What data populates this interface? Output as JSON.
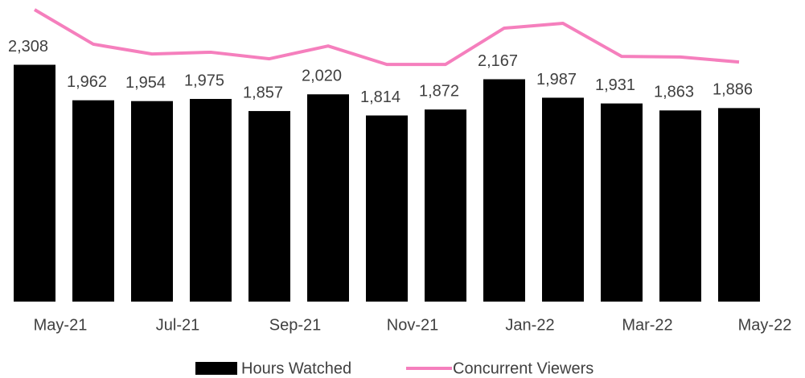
{
  "chart_data": {
    "type": "bar",
    "categories": [
      "May-21",
      null,
      "Jul-21",
      null,
      "Sep-21",
      null,
      "Nov-21",
      null,
      "Jan-22",
      null,
      "Mar-22",
      null,
      "May-22"
    ],
    "series": [
      {
        "name": "Hours Watched",
        "color": "#000000",
        "values": [
          2308,
          1962,
          1954,
          1975,
          1857,
          2020,
          1814,
          1872,
          2167,
          1987,
          1931,
          1863,
          1886
        ],
        "value_labels": [
          "2,308",
          "1,962",
          "1,954",
          "1,975",
          "1,857",
          "2,020",
          "1,814",
          "1,872",
          "2,167",
          "1,987",
          "1,931",
          "1,863",
          "1,886"
        ]
      },
      {
        "name": "Concurrent Viewers",
        "color": "#f57fbd",
        "type": "line",
        "axis": "y2",
        "values": [
          98.1,
          86.5,
          83.2,
          83.8,
          81.6,
          85.9,
          79.7,
          79.7,
          91.9,
          93.5,
          82.4,
          82.2,
          80.5
        ]
      }
    ],
    "ylim": [
      0,
      2900
    ],
    "y2lim": [
      0,
      100
    ],
    "legend": "bottom"
  }
}
